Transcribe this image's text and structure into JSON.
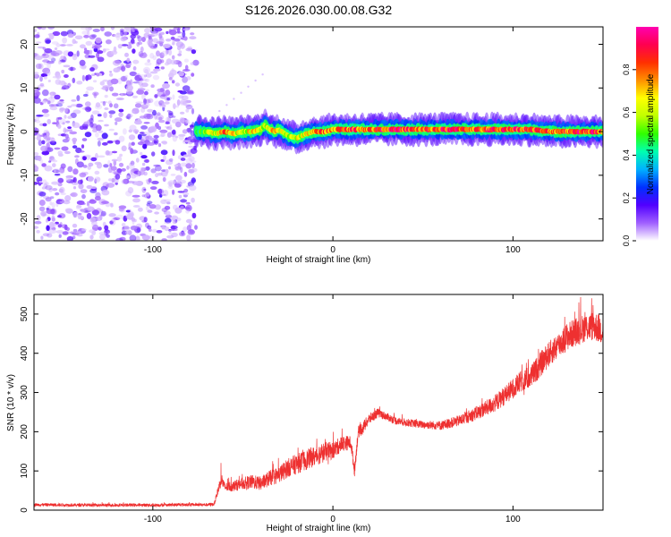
{
  "chart_data": [
    {
      "type": "heatmap",
      "title": "S126.2026.030.00.08.G32",
      "xlabel": "Height of straight line (km)",
      "ylabel": "Frequency (Hz)",
      "xlim": [
        -166,
        150
      ],
      "ylim": [
        -25,
        24
      ],
      "xticks": [
        -100,
        0,
        100
      ],
      "yticks": [
        -20,
        -10,
        0,
        10,
        20
      ],
      "grid": false,
      "noise_region_x": [
        -166,
        -76
      ],
      "ridge": {
        "x": [
          -76,
          -70,
          -65,
          -60,
          -55,
          -50,
          -45,
          -40,
          -38,
          -35,
          -32,
          -30,
          -25,
          -20,
          -15,
          -10,
          -5,
          0,
          10,
          20,
          30,
          40,
          50,
          60,
          70,
          80,
          90,
          100,
          110,
          120,
          130,
          140,
          150
        ],
        "freq": [
          0,
          0,
          -0.5,
          0,
          -0.5,
          0,
          0,
          0.5,
          1.5,
          0.5,
          0,
          0.5,
          -1,
          -1.5,
          -0.5,
          0,
          0,
          0.5,
          0.5,
          0.5,
          0.5,
          0.5,
          0.5,
          0.5,
          0.5,
          0.5,
          0.5,
          0.5,
          0.5,
          0,
          0,
          0,
          0
        ],
        "amplitude": [
          0.5,
          0.6,
          0.7,
          0.85,
          0.7,
          0.6,
          0.75,
          0.65,
          0.6,
          0.7,
          0.8,
          0.75,
          0.6,
          0.65,
          0.7,
          0.8,
          0.85,
          0.8,
          0.9,
          0.85,
          0.95,
          0.9,
          0.85,
          0.9,
          0.95,
          0.85,
          0.9,
          0.95,
          0.9,
          0.85,
          0.9,
          0.95,
          0.9
        ]
      },
      "colorbar": {
        "label": "Normalized spectral amplitude",
        "range": [
          0,
          1
        ],
        "ticks": [
          "0.0",
          "0.2",
          "0.4",
          "0.6",
          "0.8"
        ],
        "colormap": [
          "#ffffff",
          "#a060ff",
          "#5000ff",
          "#0030ff",
          "#00b0ff",
          "#00ffb0",
          "#30ff00",
          "#c0ff00",
          "#ffff00",
          "#ff9000",
          "#ff3000",
          "#ff0050",
          "#ff00b0"
        ]
      }
    },
    {
      "type": "line",
      "xlabel": "Height of straight line (km)",
      "ylabel": "SNR (10 * v/v)",
      "xlim": [
        -166,
        150
      ],
      "ylim": [
        0,
        550
      ],
      "xticks": [
        -100,
        0,
        100
      ],
      "yticks": [
        0,
        100,
        200,
        300,
        400,
        500
      ],
      "grid": false,
      "color": "#ee3030",
      "series": [
        {
          "x": [
            -166,
            -140,
            -120,
            -100,
            -80,
            -70,
            -66,
            -62,
            -60,
            -55,
            -50,
            -45,
            -40,
            -35,
            -30,
            -25,
            -20,
            -15,
            -10,
            -5,
            0,
            5,
            10,
            12,
            14,
            17,
            20,
            25,
            30,
            35,
            40,
            50,
            60,
            70,
            80,
            90,
            100,
            105,
            110,
            115,
            120,
            125,
            130,
            135,
            140,
            145,
            150
          ],
          "y": [
            14,
            13,
            13,
            13,
            14,
            14,
            15,
            80,
            58,
            62,
            68,
            72,
            68,
            82,
            90,
            108,
            118,
            128,
            138,
            148,
            152,
            170,
            172,
            100,
            198,
            212,
            232,
            248,
            238,
            228,
            224,
            218,
            216,
            228,
            248,
            272,
            310,
            330,
            340,
            370,
            398,
            420,
            442,
            455,
            465,
            470,
            458
          ],
          "noise": [
            4,
            4,
            4,
            4,
            4,
            4,
            4,
            18,
            12,
            14,
            16,
            18,
            18,
            20,
            22,
            24,
            26,
            26,
            26,
            26,
            22,
            20,
            18,
            15,
            16,
            16,
            14,
            12,
            10,
            10,
            10,
            10,
            12,
            14,
            18,
            22,
            26,
            28,
            30,
            32,
            32,
            34,
            36,
            36,
            36,
            38,
            38
          ]
        }
      ]
    }
  ]
}
